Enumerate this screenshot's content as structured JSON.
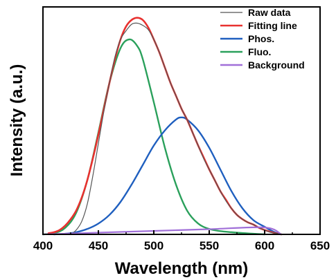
{
  "chart_data": {
    "type": "line",
    "xlabel": "Wavelength (nm)",
    "ylabel": "Intensity (a.u.)",
    "xlim": [
      400,
      650
    ],
    "ylim": [
      0,
      1.05
    ],
    "x_ticks": [
      "400",
      "450",
      "500",
      "550",
      "600",
      "650"
    ],
    "legend_position": "top-right",
    "grid": false,
    "y_tick_labels": false,
    "series": [
      {
        "name": "Raw data",
        "color": "#555555",
        "x": [
          425,
          430,
          435,
          440,
          445,
          450,
          455,
          460,
          465,
          470,
          475,
          480,
          485,
          490,
          495,
          500,
          505,
          510,
          515,
          520,
          525,
          530,
          535,
          540,
          545,
          550,
          555,
          560,
          565,
          570,
          575,
          580,
          585,
          590,
          595,
          600,
          605,
          610,
          615
        ],
        "y": [
          0.0,
          0.02,
          0.06,
          0.14,
          0.27,
          0.42,
          0.57,
          0.7,
          0.82,
          0.9,
          0.94,
          0.97,
          0.975,
          0.965,
          0.945,
          0.9,
          0.84,
          0.77,
          0.7,
          0.64,
          0.58,
          0.53,
          0.47,
          0.41,
          0.35,
          0.3,
          0.25,
          0.2,
          0.155,
          0.12,
          0.09,
          0.07,
          0.055,
          0.045,
          0.03,
          0.02,
          0.01,
          0.005,
          0.0
        ]
      },
      {
        "name": "Fitting line",
        "color": "#e8312f",
        "x": [
          405,
          410,
          415,
          420,
          425,
          430,
          435,
          440,
          445,
          450,
          455,
          460,
          465,
          470,
          475,
          480,
          485,
          490,
          495,
          500,
          505,
          510,
          515,
          520,
          525,
          530,
          535,
          540,
          545,
          550,
          555,
          560,
          565,
          570,
          575,
          580,
          585,
          590,
          595,
          600,
          605,
          610,
          615
        ],
        "y": [
          0.005,
          0.01,
          0.02,
          0.04,
          0.07,
          0.11,
          0.17,
          0.25,
          0.35,
          0.46,
          0.58,
          0.7,
          0.81,
          0.9,
          0.96,
          0.99,
          1.0,
          0.99,
          0.955,
          0.9,
          0.84,
          0.77,
          0.7,
          0.64,
          0.58,
          0.53,
          0.47,
          0.41,
          0.355,
          0.3,
          0.25,
          0.2,
          0.16,
          0.12,
          0.09,
          0.07,
          0.055,
          0.045,
          0.03,
          0.02,
          0.012,
          0.005,
          0.0
        ]
      },
      {
        "name": "Phos.",
        "color": "#1f5fbf",
        "x": [
          410,
          420,
          430,
          440,
          450,
          460,
          470,
          480,
          490,
          500,
          510,
          520,
          525,
          530,
          540,
          550,
          560,
          570,
          580,
          590,
          600,
          605,
          610,
          615
        ],
        "y": [
          0.0,
          0.003,
          0.01,
          0.025,
          0.05,
          0.09,
          0.15,
          0.23,
          0.32,
          0.41,
          0.48,
          0.53,
          0.54,
          0.53,
          0.48,
          0.4,
          0.3,
          0.2,
          0.12,
          0.065,
          0.035,
          0.02,
          0.008,
          0.0
        ]
      },
      {
        "name": "Fluo.",
        "color": "#2aa05b",
        "x": [
          400,
          410,
          420,
          430,
          440,
          450,
          460,
          470,
          478,
          485,
          490,
          500,
          510,
          520,
          530,
          540,
          550,
          560,
          570,
          580,
          590,
          600
        ],
        "y": [
          0.0,
          0.005,
          0.03,
          0.1,
          0.25,
          0.47,
          0.7,
          0.86,
          0.9,
          0.87,
          0.81,
          0.61,
          0.4,
          0.23,
          0.11,
          0.05,
          0.025,
          0.015,
          0.01,
          0.006,
          0.003,
          0.0
        ]
      },
      {
        "name": "Background",
        "color": "#a06fd8",
        "x": [
          400,
          450,
          500,
          550,
          600,
          615
        ],
        "y": [
          0.0,
          0.008,
          0.016,
          0.024,
          0.032,
          0.0
        ]
      }
    ]
  }
}
